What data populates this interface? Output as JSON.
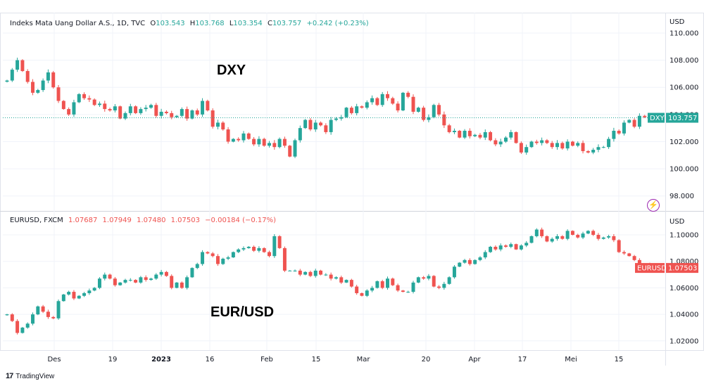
{
  "colors": {
    "up": "#26a69a",
    "down": "#ef5350",
    "grid": "#f0f3fa",
    "axis_text": "#131722",
    "dxy_badge": "#26a69a",
    "eur_badge": "#ef5350",
    "accent": "#9c27b0"
  },
  "top_legend": {
    "name": "Indeks Mata Uang Dollar A.S., 1D, TVC",
    "o_label": "O",
    "o": "103.543",
    "h_label": "H",
    "h": "103.768",
    "l_label": "L",
    "l": "103.354",
    "c_label": "C",
    "c": "103.757",
    "chg": "+0.242 (+0.23%)"
  },
  "bottom_legend": {
    "name": "EURUSD, FXCM",
    "o": "1.07687",
    "h": "1.07949",
    "l": "1.07480",
    "c": "1.07503",
    "chg": "−0.00184 (−0.17%)"
  },
  "footer": {
    "logo": "17",
    "brand": "TradingView"
  },
  "alert_icon": "alert-clock-icon",
  "chart_data": [
    {
      "type": "candlestick",
      "title": "DXY",
      "legend": "Indeks Mata Uang Dollar A.S., 1D, TVC",
      "y_unit": "USD",
      "ylim": [
        97.0,
        111.5
      ],
      "yticks": [
        "110.000",
        "108.000",
        "106.000",
        "104.000",
        "102.000",
        "100.000",
        "98.000"
      ],
      "last_value_badge": {
        "name": "DXY",
        "value": "103.757"
      },
      "x_tick_labels": [
        "Des",
        "19",
        "2023",
        "16",
        "Feb",
        "15",
        "Mar",
        "20",
        "Apr",
        "17",
        "Mei",
        "15"
      ],
      "grid": true,
      "close_series": [
        106.5,
        107.3,
        108.0,
        107.2,
        106.4,
        105.6,
        105.8,
        106.5,
        107.1,
        106.0,
        105.0,
        104.4,
        104.0,
        104.9,
        105.5,
        105.2,
        105.1,
        104.7,
        104.8,
        104.4,
        104.3,
        104.6,
        103.7,
        104.1,
        104.6,
        104.1,
        104.4,
        104.5,
        104.7,
        103.9,
        104.2,
        104.1,
        103.8,
        103.9,
        104.4,
        103.7,
        104.3,
        104.0,
        105.0,
        104.3,
        103.1,
        103.4,
        102.9,
        102.0,
        102.2,
        102.1,
        102.6,
        102.2,
        101.8,
        102.2,
        101.7,
        101.9,
        101.6,
        102.2,
        101.7,
        100.9,
        102.1,
        103.0,
        103.6,
        102.9,
        103.4,
        103.2,
        102.7,
        103.6,
        103.7,
        103.8,
        104.5,
        104.1,
        104.6,
        104.5,
        104.9,
        105.2,
        104.7,
        105.5,
        105.2,
        104.8,
        104.3,
        105.6,
        105.3,
        104.2,
        104.5,
        103.6,
        103.8,
        104.7,
        104.0,
        103.2,
        102.7,
        102.8,
        102.3,
        102.8,
        102.4,
        102.5,
        102.3,
        102.7,
        102.1,
        101.8,
        102.0,
        102.3,
        102.7,
        101.9,
        101.2,
        101.6,
        102.0,
        101.9,
        102.1,
        101.9,
        101.6,
        101.9,
        101.5,
        102.0,
        101.7,
        101.9,
        101.3,
        101.2,
        101.4,
        101.6,
        101.6,
        102.2,
        102.8,
        102.6,
        103.4,
        103.6,
        103.1,
        103.9,
        103.8,
        103.757
      ]
    },
    {
      "type": "candlestick",
      "title": "EUR/USD",
      "legend": "EURUSD, FXCM",
      "y_unit": "USD",
      "ylim": [
        1.013,
        1.117
      ],
      "yticks": [
        "1.10000",
        "1.08000",
        "1.06000",
        "1.04000",
        "1.02000"
      ],
      "last_value_badge": {
        "name": "EURUSD",
        "value": "1.07503"
      },
      "x_tick_labels": [
        "Des",
        "19",
        "2023",
        "16",
        "Feb",
        "15",
        "Mar",
        "20",
        "Apr",
        "17",
        "Mei",
        "15"
      ],
      "grid": true,
      "close_series": [
        1.04,
        1.035,
        1.026,
        1.03,
        1.033,
        1.04,
        1.046,
        1.042,
        1.038,
        1.037,
        1.05,
        1.055,
        1.057,
        1.052,
        1.054,
        1.056,
        1.058,
        1.06,
        1.067,
        1.07,
        1.067,
        1.062,
        1.064,
        1.066,
        1.066,
        1.064,
        1.068,
        1.066,
        1.067,
        1.07,
        1.072,
        1.069,
        1.06,
        1.064,
        1.06,
        1.068,
        1.075,
        1.078,
        1.087,
        1.086,
        1.084,
        1.078,
        1.082,
        1.083,
        1.087,
        1.089,
        1.09,
        1.091,
        1.088,
        1.09,
        1.087,
        1.084,
        1.099,
        1.09,
        1.073,
        1.073,
        1.073,
        1.07,
        1.072,
        1.069,
        1.073,
        1.07,
        1.07,
        1.067,
        1.068,
        1.064,
        1.066,
        1.061,
        1.056,
        1.054,
        1.058,
        1.06,
        1.065,
        1.06,
        1.067,
        1.062,
        1.058,
        1.057,
        1.057,
        1.064,
        1.068,
        1.067,
        1.069,
        1.061,
        1.06,
        1.063,
        1.068,
        1.076,
        1.079,
        1.081,
        1.078,
        1.081,
        1.083,
        1.087,
        1.091,
        1.089,
        1.092,
        1.091,
        1.093,
        1.089,
        1.092,
        1.094,
        1.099,
        1.104,
        1.099,
        1.095,
        1.097,
        1.099,
        1.097,
        1.103,
        1.1,
        1.098,
        1.101,
        1.103,
        1.1,
        1.097,
        1.098,
        1.099,
        1.096,
        1.087,
        1.086,
        1.084,
        1.081,
        1.078,
        1.078,
        1.07503
      ]
    }
  ]
}
